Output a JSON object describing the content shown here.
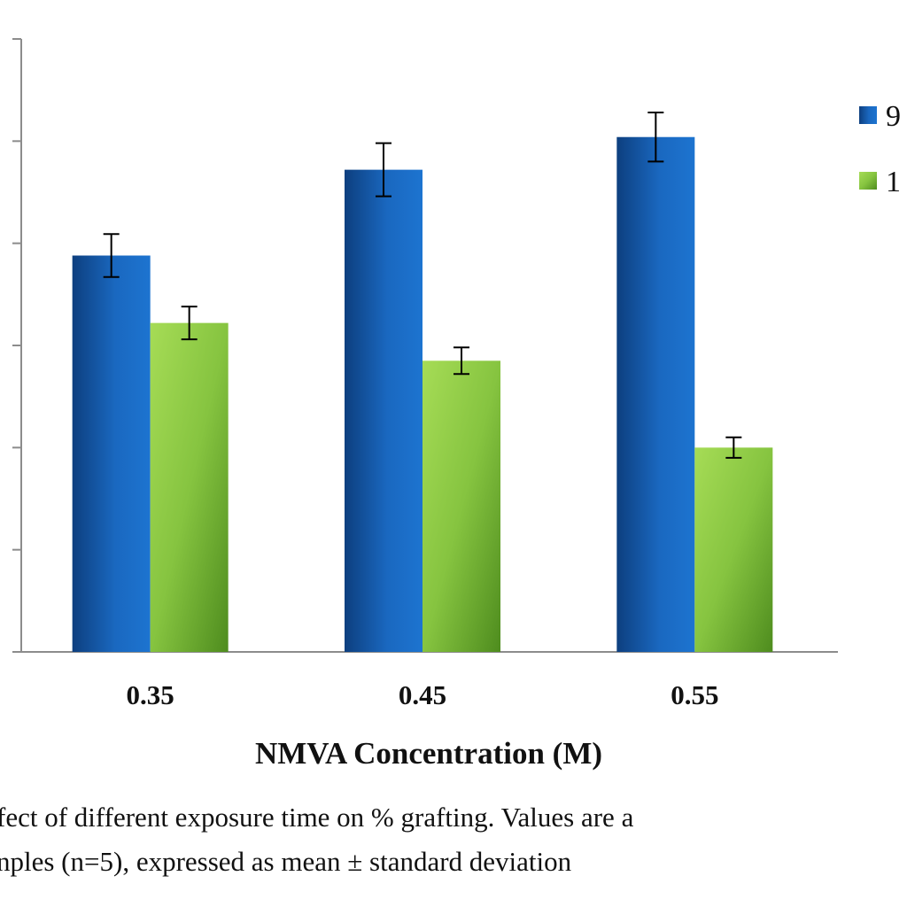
{
  "chart_data": {
    "type": "bar",
    "categories": [
      "0.35",
      "0.45",
      "0.55"
    ],
    "xlabel": "NMVA Concentration  (M)",
    "ylabel": "",
    "ylim": [
      0,
      6
    ],
    "grid": false,
    "legend_position": "right",
    "series": [
      {
        "name": "9",
        "color": "#1a68c0",
        "values": [
          3.88,
          4.72,
          5.04
        ],
        "errors": [
          0.21,
          0.26,
          0.24
        ]
      },
      {
        "name": "1",
        "color": "#86c440",
        "values": [
          3.22,
          2.85,
          2.0
        ],
        "errors": [
          0.16,
          0.13,
          0.1
        ]
      }
    ]
  },
  "caption": {
    "line1": "fect of different exposure time on % grafting. Values are a",
    "line2": "nples (n=5), expressed as mean ± standard deviation"
  }
}
